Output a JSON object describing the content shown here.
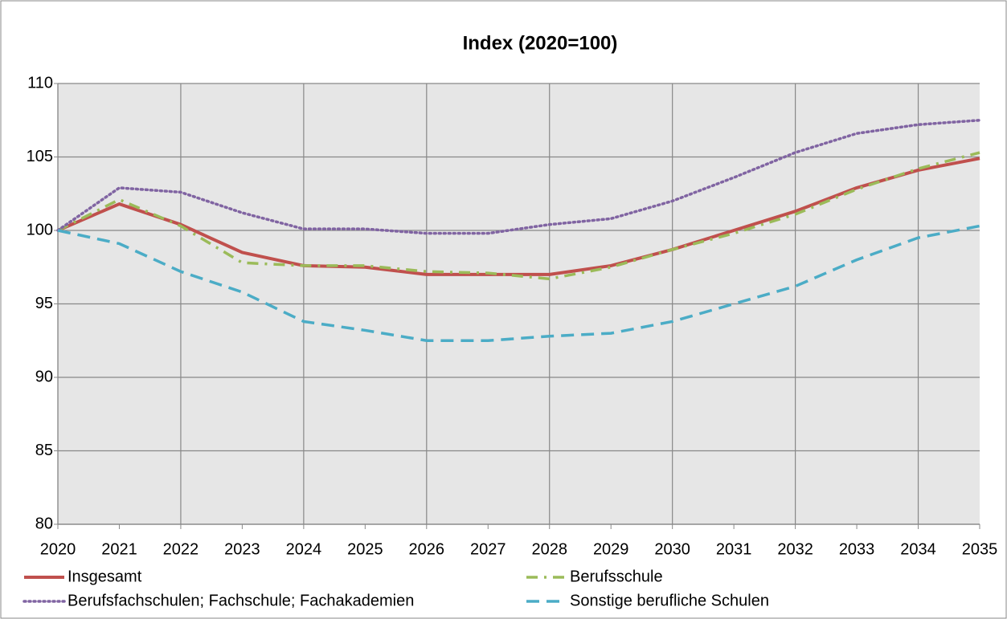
{
  "chart_data": {
    "type": "line",
    "title": "Index (2020=100)",
    "x": [
      2020,
      2021,
      2022,
      2023,
      2024,
      2025,
      2026,
      2027,
      2028,
      2029,
      2030,
      2031,
      2032,
      2033,
      2034,
      2035
    ],
    "xlim": [
      2020,
      2035
    ],
    "xticks": [
      2020,
      2021,
      2022,
      2023,
      2024,
      2025,
      2026,
      2027,
      2028,
      2029,
      2030,
      2031,
      2032,
      2033,
      2034,
      2035
    ],
    "ylim": [
      80,
      110
    ],
    "yticks": [
      80,
      85,
      90,
      95,
      100,
      105,
      110
    ],
    "grid": true,
    "series": [
      {
        "name": "Insgesamt",
        "color": "#c0504d",
        "style": "solid",
        "values": [
          100,
          101.8,
          100.4,
          98.5,
          97.6,
          97.5,
          97.0,
          97.0,
          97.0,
          97.6,
          98.7,
          100.0,
          101.3,
          102.9,
          104.1,
          104.9
        ]
      },
      {
        "name": "Berufsschule",
        "color": "#9bbb59",
        "style": "dashdot",
        "values": [
          100,
          102.1,
          100.3,
          97.8,
          97.6,
          97.6,
          97.2,
          97.1,
          96.7,
          97.5,
          98.7,
          99.8,
          101.1,
          102.8,
          104.2,
          105.3
        ]
      },
      {
        "name": "Berufsfachschulen; Fachschule; Fachakademien",
        "color": "#8064a2",
        "style": "dotted",
        "values": [
          100,
          102.9,
          102.6,
          101.2,
          100.1,
          100.1,
          99.8,
          99.8,
          100.4,
          100.8,
          102.0,
          103.6,
          105.3,
          106.6,
          107.2,
          107.5
        ]
      },
      {
        "name": "Sonstige berufliche Schulen",
        "color": "#4bacc6",
        "style": "dashed",
        "values": [
          100,
          99.1,
          97.2,
          95.8,
          93.8,
          93.2,
          92.5,
          92.5,
          92.8,
          93.0,
          93.8,
          95.0,
          96.2,
          98.0,
          99.5,
          100.3
        ]
      }
    ]
  }
}
